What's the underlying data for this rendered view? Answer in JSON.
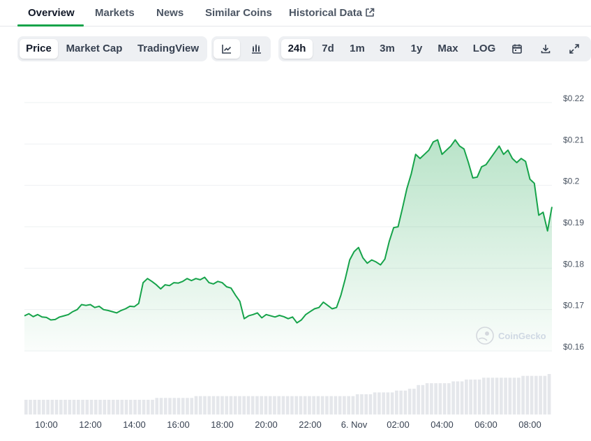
{
  "nav": {
    "tabs": [
      {
        "label": "Overview",
        "active": true
      },
      {
        "label": "Markets",
        "active": false
      },
      {
        "label": "News",
        "active": false
      },
      {
        "label": "Similar Coins",
        "active": false
      },
      {
        "label": "Historical Data",
        "active": false,
        "icon": "external-link-icon"
      }
    ]
  },
  "toolbar": {
    "metric_tabs": [
      {
        "label": "Price",
        "active": true
      },
      {
        "label": "Market Cap",
        "active": false
      },
      {
        "label": "TradingView",
        "active": false
      }
    ],
    "chart_style_buttons": [
      {
        "icon": "line-chart-icon",
        "active": true
      },
      {
        "icon": "candlestick-chart-icon",
        "active": false
      }
    ],
    "range_tabs": [
      {
        "label": "24h",
        "active": true
      },
      {
        "label": "7d",
        "active": false
      },
      {
        "label": "1m",
        "active": false
      },
      {
        "label": "3m",
        "active": false
      },
      {
        "label": "1y",
        "active": false
      },
      {
        "label": "Max",
        "active": false
      },
      {
        "label": "LOG",
        "active": false
      }
    ],
    "action_icons": [
      "calendar-icon",
      "download-icon",
      "fullscreen-icon"
    ]
  },
  "watermark": "CoinGecko",
  "colors": {
    "line": "#16a34a",
    "accent": "#16a34a",
    "volume": "#e5e7eb",
    "grid": "#eef0f2"
  },
  "chart_data": {
    "type": "area",
    "title": "",
    "xlabel": "",
    "ylabel": "",
    "ylim": [
      0.16,
      0.22
    ],
    "xlim": [
      9.0,
      33.0
    ],
    "ytick_values": [
      0.16,
      0.17,
      0.18,
      0.19,
      0.2,
      0.21,
      0.22
    ],
    "ytick_labels": [
      "$0.16",
      "$0.17",
      "$0.18",
      "$0.19",
      "$0.2",
      "$0.21",
      "$0.22"
    ],
    "xtick_values": [
      10,
      12,
      14,
      16,
      18,
      20,
      22,
      24,
      26,
      28,
      30,
      32
    ],
    "xtick_labels": [
      "10:00",
      "12:00",
      "14:00",
      "16:00",
      "18:00",
      "20:00",
      "22:00",
      "6. Nov",
      "02:00",
      "04:00",
      "06:00",
      "08:00"
    ],
    "grid": true,
    "series": [
      {
        "x": [
          9.0,
          9.2,
          9.4,
          9.6,
          9.8,
          10.0,
          10.2,
          10.4,
          10.6,
          10.8,
          11.0,
          11.2,
          11.4,
          11.6,
          11.8,
          12.0,
          12.2,
          12.4,
          12.6,
          12.8,
          13.0,
          13.2,
          13.4,
          13.6,
          13.8,
          14.0,
          14.2,
          14.4,
          14.6,
          14.8,
          15.0,
          15.2,
          15.4,
          15.6,
          15.8,
          16.0,
          16.2,
          16.4,
          16.6,
          16.8,
          17.0,
          17.2,
          17.4,
          17.6,
          17.8,
          18.0,
          18.2,
          18.4,
          18.6,
          18.8,
          19.0,
          19.2,
          19.4,
          19.6,
          19.8,
          20.0,
          20.2,
          20.4,
          20.6,
          20.8,
          21.0,
          21.2,
          21.4,
          21.6,
          21.8,
          22.0,
          22.2,
          22.4,
          22.6,
          22.8,
          23.0,
          23.2,
          23.4,
          23.6,
          23.8,
          24.0,
          24.2,
          24.4,
          24.6,
          24.8,
          25.0,
          25.2,
          25.4,
          25.6,
          25.8,
          26.0,
          26.2,
          26.4,
          26.6,
          26.8,
          27.0,
          27.2,
          27.4,
          27.6,
          27.8,
          28.0,
          28.2,
          28.4,
          28.6,
          28.8,
          29.0,
          29.2,
          29.4,
          29.6,
          29.8,
          30.0,
          30.2,
          30.4,
          30.6,
          30.8,
          31.0,
          31.2,
          31.4,
          31.6,
          31.8,
          32.0,
          32.2,
          32.4,
          32.6,
          32.8,
          33.0
        ],
        "y": [
          0.1685,
          0.169,
          0.1683,
          0.1688,
          0.1682,
          0.1681,
          0.1675,
          0.1676,
          0.1682,
          0.1685,
          0.1688,
          0.1695,
          0.17,
          0.1712,
          0.171,
          0.1712,
          0.1705,
          0.1708,
          0.17,
          0.1698,
          0.1695,
          0.1692,
          0.1698,
          0.1702,
          0.1708,
          0.1707,
          0.1715,
          0.1765,
          0.1775,
          0.1768,
          0.176,
          0.175,
          0.176,
          0.1758,
          0.1765,
          0.1764,
          0.1768,
          0.1775,
          0.177,
          0.1775,
          0.1772,
          0.1778,
          0.1765,
          0.1762,
          0.1768,
          0.1765,
          0.1755,
          0.1752,
          0.1735,
          0.172,
          0.1678,
          0.1685,
          0.1688,
          0.1692,
          0.168,
          0.1688,
          0.1685,
          0.1682,
          0.1686,
          0.1683,
          0.1678,
          0.1682,
          0.1668,
          0.1675,
          0.1688,
          0.1695,
          0.1702,
          0.1705,
          0.1718,
          0.171,
          0.1702,
          0.1705,
          0.1735,
          0.1775,
          0.182,
          0.184,
          0.185,
          0.1825,
          0.1812,
          0.182,
          0.1815,
          0.1808,
          0.1822,
          0.1865,
          0.1898,
          0.19,
          0.1945,
          0.1992,
          0.2028,
          0.2075,
          0.2065,
          0.2075,
          0.2085,
          0.2105,
          0.211,
          0.2075,
          0.2085,
          0.2095,
          0.211,
          0.2095,
          0.2088,
          0.2055,
          0.2018,
          0.202,
          0.2045,
          0.205,
          0.2065,
          0.208,
          0.2095,
          0.2075,
          0.2085,
          0.2065,
          0.2055,
          0.2065,
          0.2058,
          0.2015,
          0.2005,
          0.1928,
          0.1935,
          0.189,
          0.1948
        ]
      }
    ],
    "volume": [
      8,
      8,
      8,
      8,
      8,
      8,
      8,
      8,
      8,
      8,
      8,
      8,
      8,
      8,
      8,
      8,
      8,
      8,
      8,
      8,
      8,
      8,
      8,
      8,
      8,
      8,
      8,
      8,
      8,
      8,
      9,
      9,
      9,
      9,
      9,
      9,
      9,
      9,
      9,
      10,
      10,
      10,
      10,
      10,
      10,
      10,
      10,
      10,
      10,
      10,
      10,
      10,
      10,
      10,
      10,
      10,
      10,
      10,
      10,
      10,
      10,
      10,
      10,
      10,
      10,
      10,
      10,
      10,
      10,
      10,
      10,
      10,
      10,
      10,
      10,
      10,
      11,
      11,
      11,
      11,
      12,
      12,
      12,
      12,
      12,
      13,
      13,
      13,
      14,
      14,
      16,
      16,
      17,
      17,
      17,
      17,
      17,
      17,
      18,
      18,
      18,
      19,
      19,
      19,
      19,
      20,
      20,
      20,
      20,
      20,
      20,
      20,
      20,
      20,
      21,
      21,
      21,
      21,
      21,
      21,
      22
    ]
  }
}
